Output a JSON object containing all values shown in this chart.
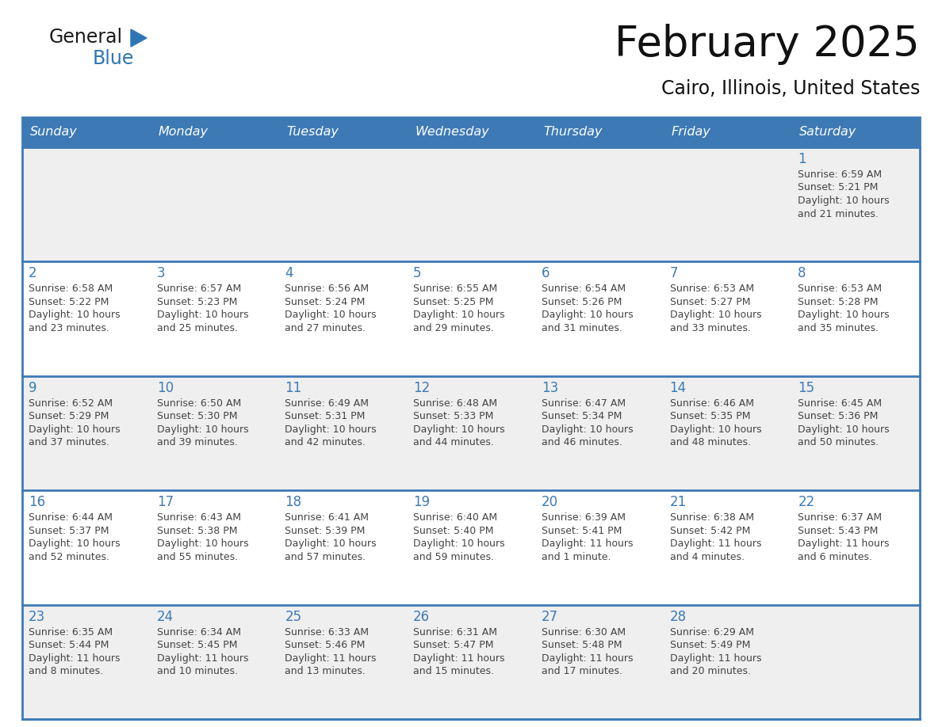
{
  "title": "February 2025",
  "subtitle": "Cairo, Illinois, United States",
  "days_of_week": [
    "Sunday",
    "Monday",
    "Tuesday",
    "Wednesday",
    "Thursday",
    "Friday",
    "Saturday"
  ],
  "header_bg": "#3D7AB5",
  "header_text_color": "#FFFFFF",
  "cell_bg_white": "#FFFFFF",
  "cell_bg_gray": "#EFEFEF",
  "separator_color": "#3D7AB5",
  "day_number_color": "#3D7AB5",
  "info_text_color": "#444444",
  "logo_general_color": "#1a1a1a",
  "logo_blue_color": "#2E75B6",
  "calendar_data": [
    {
      "day": 1,
      "week": 0,
      "weekday": 6,
      "sunrise": "6:59 AM",
      "sunset": "5:21 PM",
      "daylight_hours": 10,
      "daylight_minutes": 21
    },
    {
      "day": 2,
      "week": 1,
      "weekday": 0,
      "sunrise": "6:58 AM",
      "sunset": "5:22 PM",
      "daylight_hours": 10,
      "daylight_minutes": 23
    },
    {
      "day": 3,
      "week": 1,
      "weekday": 1,
      "sunrise": "6:57 AM",
      "sunset": "5:23 PM",
      "daylight_hours": 10,
      "daylight_minutes": 25
    },
    {
      "day": 4,
      "week": 1,
      "weekday": 2,
      "sunrise": "6:56 AM",
      "sunset": "5:24 PM",
      "daylight_hours": 10,
      "daylight_minutes": 27
    },
    {
      "day": 5,
      "week": 1,
      "weekday": 3,
      "sunrise": "6:55 AM",
      "sunset": "5:25 PM",
      "daylight_hours": 10,
      "daylight_minutes": 29
    },
    {
      "day": 6,
      "week": 1,
      "weekday": 4,
      "sunrise": "6:54 AM",
      "sunset": "5:26 PM",
      "daylight_hours": 10,
      "daylight_minutes": 31
    },
    {
      "day": 7,
      "week": 1,
      "weekday": 5,
      "sunrise": "6:53 AM",
      "sunset": "5:27 PM",
      "daylight_hours": 10,
      "daylight_minutes": 33
    },
    {
      "day": 8,
      "week": 1,
      "weekday": 6,
      "sunrise": "6:53 AM",
      "sunset": "5:28 PM",
      "daylight_hours": 10,
      "daylight_minutes": 35
    },
    {
      "day": 9,
      "week": 2,
      "weekday": 0,
      "sunrise": "6:52 AM",
      "sunset": "5:29 PM",
      "daylight_hours": 10,
      "daylight_minutes": 37
    },
    {
      "day": 10,
      "week": 2,
      "weekday": 1,
      "sunrise": "6:50 AM",
      "sunset": "5:30 PM",
      "daylight_hours": 10,
      "daylight_minutes": 39
    },
    {
      "day": 11,
      "week": 2,
      "weekday": 2,
      "sunrise": "6:49 AM",
      "sunset": "5:31 PM",
      "daylight_hours": 10,
      "daylight_minutes": 42
    },
    {
      "day": 12,
      "week": 2,
      "weekday": 3,
      "sunrise": "6:48 AM",
      "sunset": "5:33 PM",
      "daylight_hours": 10,
      "daylight_minutes": 44
    },
    {
      "day": 13,
      "week": 2,
      "weekday": 4,
      "sunrise": "6:47 AM",
      "sunset": "5:34 PM",
      "daylight_hours": 10,
      "daylight_minutes": 46
    },
    {
      "day": 14,
      "week": 2,
      "weekday": 5,
      "sunrise": "6:46 AM",
      "sunset": "5:35 PM",
      "daylight_hours": 10,
      "daylight_minutes": 48
    },
    {
      "day": 15,
      "week": 2,
      "weekday": 6,
      "sunrise": "6:45 AM",
      "sunset": "5:36 PM",
      "daylight_hours": 10,
      "daylight_minutes": 50
    },
    {
      "day": 16,
      "week": 3,
      "weekday": 0,
      "sunrise": "6:44 AM",
      "sunset": "5:37 PM",
      "daylight_hours": 10,
      "daylight_minutes": 52
    },
    {
      "day": 17,
      "week": 3,
      "weekday": 1,
      "sunrise": "6:43 AM",
      "sunset": "5:38 PM",
      "daylight_hours": 10,
      "daylight_minutes": 55
    },
    {
      "day": 18,
      "week": 3,
      "weekday": 2,
      "sunrise": "6:41 AM",
      "sunset": "5:39 PM",
      "daylight_hours": 10,
      "daylight_minutes": 57
    },
    {
      "day": 19,
      "week": 3,
      "weekday": 3,
      "sunrise": "6:40 AM",
      "sunset": "5:40 PM",
      "daylight_hours": 10,
      "daylight_minutes": 59
    },
    {
      "day": 20,
      "week": 3,
      "weekday": 4,
      "sunrise": "6:39 AM",
      "sunset": "5:41 PM",
      "daylight_hours": 11,
      "daylight_minutes": 1
    },
    {
      "day": 21,
      "week": 3,
      "weekday": 5,
      "sunrise": "6:38 AM",
      "sunset": "5:42 PM",
      "daylight_hours": 11,
      "daylight_minutes": 4
    },
    {
      "day": 22,
      "week": 3,
      "weekday": 6,
      "sunrise": "6:37 AM",
      "sunset": "5:43 PM",
      "daylight_hours": 11,
      "daylight_minutes": 6
    },
    {
      "day": 23,
      "week": 4,
      "weekday": 0,
      "sunrise": "6:35 AM",
      "sunset": "5:44 PM",
      "daylight_hours": 11,
      "daylight_minutes": 8
    },
    {
      "day": 24,
      "week": 4,
      "weekday": 1,
      "sunrise": "6:34 AM",
      "sunset": "5:45 PM",
      "daylight_hours": 11,
      "daylight_minutes": 10
    },
    {
      "day": 25,
      "week": 4,
      "weekday": 2,
      "sunrise": "6:33 AM",
      "sunset": "5:46 PM",
      "daylight_hours": 11,
      "daylight_minutes": 13
    },
    {
      "day": 26,
      "week": 4,
      "weekday": 3,
      "sunrise": "6:31 AM",
      "sunset": "5:47 PM",
      "daylight_hours": 11,
      "daylight_minutes": 15
    },
    {
      "day": 27,
      "week": 4,
      "weekday": 4,
      "sunrise": "6:30 AM",
      "sunset": "5:48 PM",
      "daylight_hours": 11,
      "daylight_minutes": 17
    },
    {
      "day": 28,
      "week": 4,
      "weekday": 5,
      "sunrise": "6:29 AM",
      "sunset": "5:49 PM",
      "daylight_hours": 11,
      "daylight_minutes": 20
    }
  ],
  "num_weeks": 5,
  "figsize": [
    11.88,
    9.18
  ],
  "dpi": 100
}
